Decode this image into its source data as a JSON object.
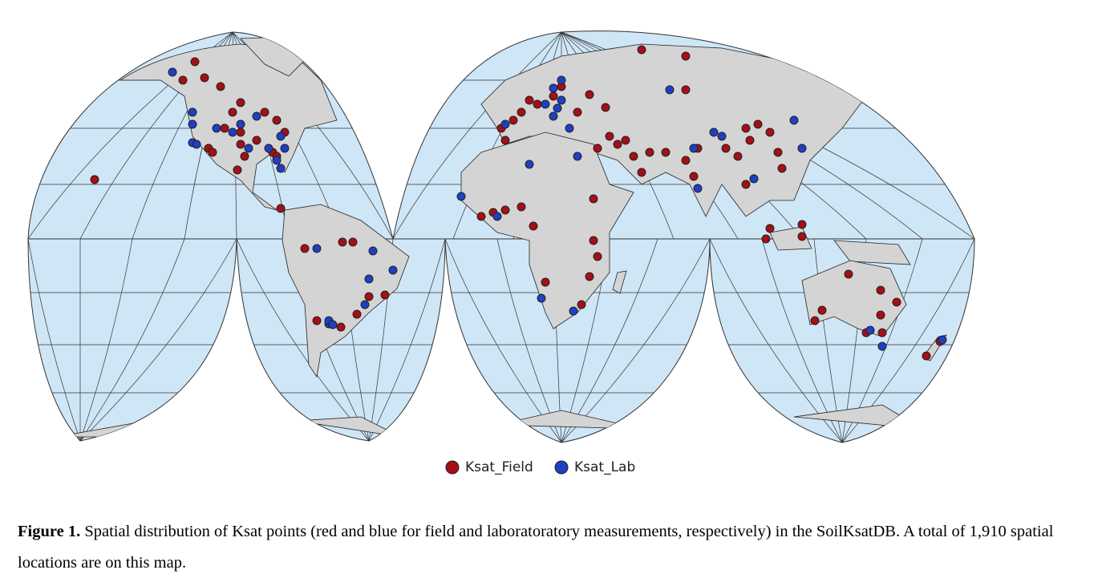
{
  "figure": {
    "legend": [
      {
        "label": "Ksat_Field",
        "color": "#a50f15"
      },
      {
        "label": "Ksat_Lab",
        "color": "#1f3fc4"
      }
    ],
    "caption": {
      "label": "Figure 1.",
      "text": "Spatial distribution of Ksat points (red and blue for field and laboratoratory measurements, respectively) in the SoilKsatDB. A total of 1,910 spatial locations are on this map."
    }
  }
}
